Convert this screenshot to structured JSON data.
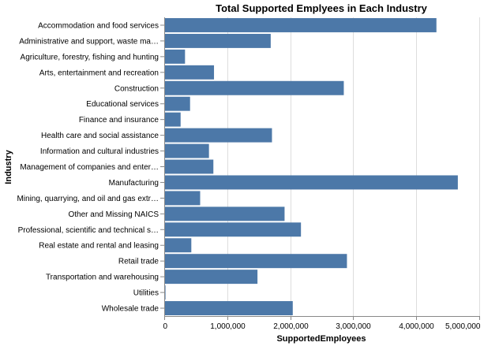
{
  "chart_data": {
    "type": "bar",
    "orientation": "horizontal",
    "title": "Total Supported Emplyees in Each Industry",
    "xlabel": "SupportedEmployees",
    "ylabel": "Industry",
    "xlim": [
      0,
      5000000
    ],
    "xticks": [
      0,
      1000000,
      2000000,
      3000000,
      4000000,
      5000000
    ],
    "xtick_labels": [
      "0",
      "1,000,000",
      "2,000,000",
      "3,000,000",
      "4,000,000",
      "5,000,000"
    ],
    "grid": true,
    "bar_color": "#4c78a8",
    "categories": [
      "Accommodation and food services",
      "Administrative and support, waste ma…",
      "Agriculture, forestry, fishing and hunting",
      "Arts, entertainment and recreation",
      "Construction",
      "Educational services",
      "Finance and insurance",
      "Health care and social assistance",
      "Information and cultural industries",
      "Management of companies and enter…",
      "Manufacturing",
      "Mining, quarrying, and oil and gas extr…",
      "Other and Missing NAICS",
      "Professional, scientific and technical s…",
      "Real estate and rental and leasing",
      "Retail trade",
      "Transportation and warehousing",
      "Utilities",
      "Wholesale trade"
    ],
    "values": [
      4320000,
      1690000,
      330000,
      790000,
      2850000,
      410000,
      260000,
      1710000,
      710000,
      780000,
      4660000,
      570000,
      1910000,
      2170000,
      430000,
      2900000,
      1480000,
      20000,
      2040000
    ]
  }
}
